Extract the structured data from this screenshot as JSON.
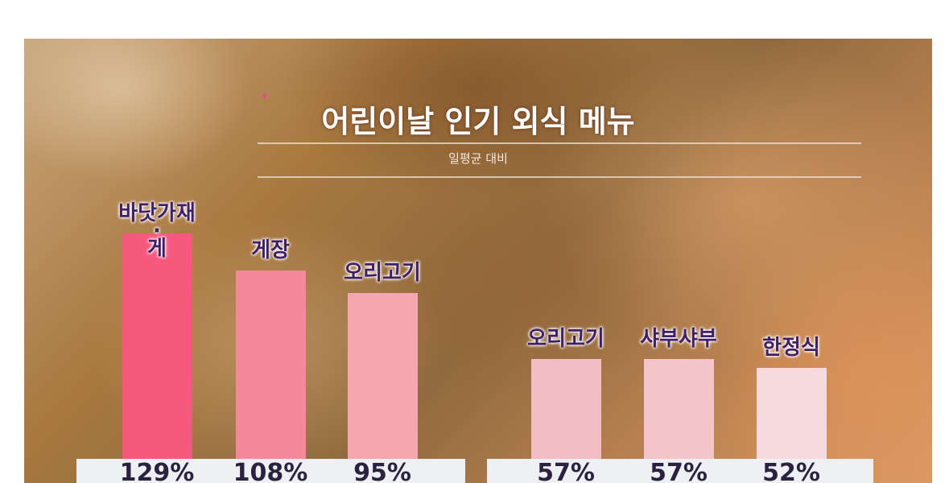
{
  "chart_data": {
    "type": "bar",
    "title": "어린이날 인기 외식 메뉴",
    "subtitle": "일평균 대비",
    "categories": [
      "바닷가재·게",
      "게장",
      "오리고기",
      "오리고기",
      "샤부샤부",
      "한정식"
    ],
    "values": [
      129,
      108,
      95,
      57,
      57,
      52
    ],
    "value_labels": [
      "129%",
      "108%",
      "95%",
      "57%",
      "57%",
      "52%"
    ],
    "unit": "%",
    "bar_colors": [
      "#f7587e",
      "#f5899b",
      "#f6a6b0",
      "#f3bdc3",
      "#f3c4c8",
      "#f6dadd"
    ],
    "label_color": "#3f1f66",
    "grid": false,
    "legend": "none"
  }
}
